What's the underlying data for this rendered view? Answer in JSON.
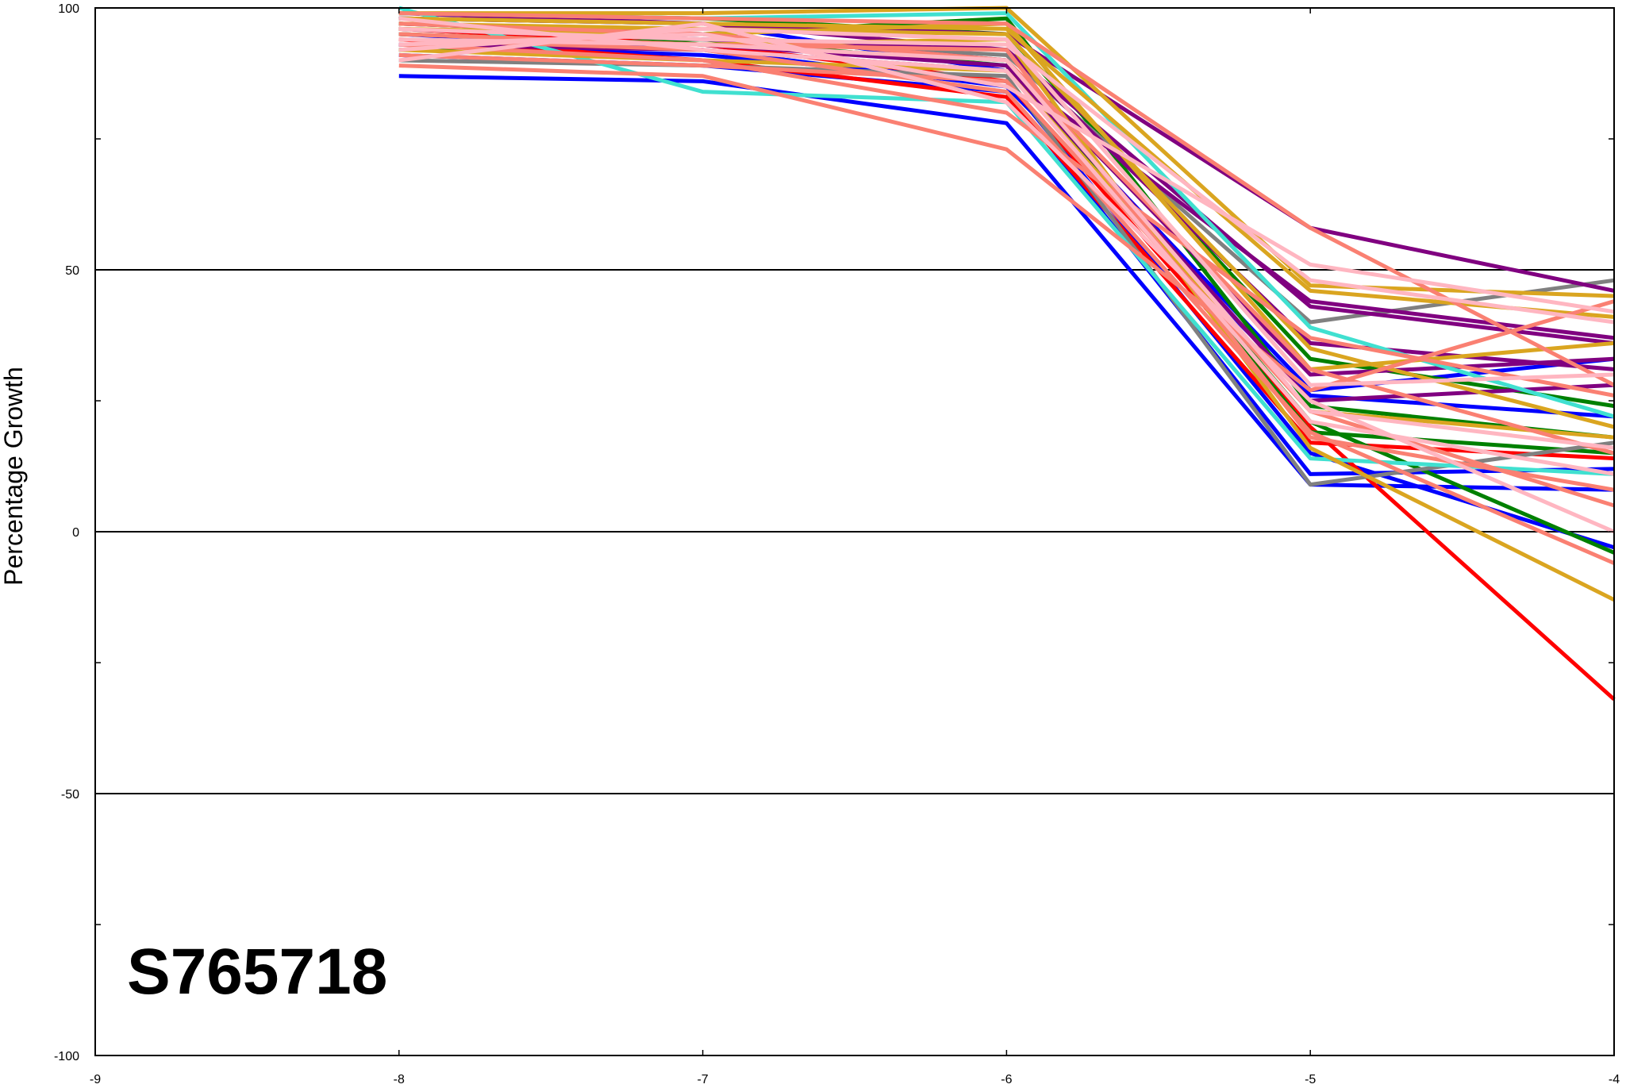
{
  "chart_data": {
    "type": "line",
    "title": "",
    "xlabel": "",
    "ylabel": "Percentage Growth",
    "label": "S765718",
    "xlim": [
      -9,
      -4
    ],
    "ylim": [
      -100,
      100
    ],
    "x_ticks": [
      -9,
      -8,
      -7,
      -6,
      -5,
      -4
    ],
    "y_ticks": [
      100,
      50,
      0,
      -50,
      -100
    ],
    "y_gridlines": [
      50,
      0,
      -50
    ],
    "x": [
      -8,
      -7,
      -6,
      -5,
      -4
    ],
    "series": [
      {
        "color": "#0000ff",
        "values": [
          87,
          86,
          78,
          9,
          8
        ]
      },
      {
        "color": "#0000ff",
        "values": [
          91,
          89,
          84,
          11,
          12
        ]
      },
      {
        "color": "#0000ff",
        "values": [
          95,
          92,
          85,
          26,
          22
        ]
      },
      {
        "color": "#0000ff",
        "values": [
          98,
          97,
          88,
          27,
          33
        ]
      },
      {
        "color": "#0000ff",
        "values": [
          93,
          91,
          86,
          15,
          -3
        ]
      },
      {
        "color": "#ff0000",
        "values": [
          96,
          93,
          86,
          20,
          -32
        ]
      },
      {
        "color": "#ff0000",
        "values": [
          94,
          90,
          83,
          17,
          14
        ]
      },
      {
        "color": "#008000",
        "values": [
          92,
          94,
          89,
          21,
          -4
        ]
      },
      {
        "color": "#008000",
        "values": [
          97,
          95,
          98,
          24,
          18
        ]
      },
      {
        "color": "#008000",
        "values": [
          99,
          98,
          95,
          33,
          24
        ]
      },
      {
        "color": "#008000",
        "values": [
          95,
          93,
          90,
          19,
          15
        ]
      },
      {
        "color": "#808080",
        "values": [
          90,
          89,
          87,
          9,
          17
        ]
      },
      {
        "color": "#808080",
        "values": [
          96,
          94,
          91,
          40,
          48
        ]
      },
      {
        "color": "#800080",
        "values": [
          99,
          97,
          95,
          58,
          46
        ]
      },
      {
        "color": "#800080",
        "values": [
          93,
          92,
          88,
          44,
          37
        ]
      },
      {
        "color": "#800080",
        "values": [
          98,
          97,
          92,
          43,
          36
        ]
      },
      {
        "color": "#800080",
        "values": [
          97,
          95,
          90,
          30,
          33
        ]
      },
      {
        "color": "#800080",
        "values": [
          95,
          93,
          89,
          25,
          28
        ]
      },
      {
        "color": "#800080",
        "values": [
          96,
          94,
          92,
          36,
          31
        ]
      },
      {
        "color": "#40e0d0",
        "values": [
          100,
          84,
          82,
          14,
          11
        ]
      },
      {
        "color": "#40e0d0",
        "values": [
          99,
          98,
          99,
          39,
          22
        ]
      },
      {
        "color": "#daa520",
        "values": [
          99,
          99,
          100,
          47,
          45
        ]
      },
      {
        "color": "#daa520",
        "values": [
          98,
          97,
          96,
          46,
          41
        ]
      },
      {
        "color": "#daa520",
        "values": [
          95,
          93,
          94,
          16,
          -13
        ]
      },
      {
        "color": "#daa520",
        "values": [
          97,
          96,
          95,
          35,
          20
        ]
      },
      {
        "color": "#daa520",
        "values": [
          92,
          90,
          88,
          23,
          18
        ]
      },
      {
        "color": "#daa520",
        "values": [
          96,
          95,
          97,
          31,
          36
        ]
      },
      {
        "color": "#fa8072",
        "values": [
          89,
          87,
          73,
          27,
          44
        ]
      },
      {
        "color": "#fa8072",
        "values": [
          94,
          92,
          84,
          19,
          -6
        ]
      },
      {
        "color": "#fa8072",
        "values": [
          97,
          95,
          90,
          31,
          15
        ]
      },
      {
        "color": "#fa8072",
        "values": [
          93,
          90,
          80,
          37,
          26
        ]
      },
      {
        "color": "#fa8072",
        "values": [
          91,
          89,
          86,
          23,
          5
        ]
      },
      {
        "color": "#fa8072",
        "values": [
          99,
          98,
          97,
          58,
          28
        ]
      },
      {
        "color": "#fa8072",
        "values": [
          95,
          93,
          92,
          18,
          8
        ]
      },
      {
        "color": "#ffb6c1",
        "values": [
          93,
          95,
          85,
          51,
          42
        ]
      },
      {
        "color": "#ffb6c1",
        "values": [
          90,
          97,
          82,
          25,
          0
        ]
      },
      {
        "color": "#ffb6c1",
        "values": [
          96,
          94,
          93,
          48,
          40
        ]
      },
      {
        "color": "#ffb6c1",
        "values": [
          92,
          96,
          94,
          28,
          30
        ]
      },
      {
        "color": "#ffb6c1",
        "values": [
          98,
          92,
          88,
          21,
          11
        ]
      },
      {
        "color": "#ffb6c1",
        "values": [
          94,
          93,
          90,
          23,
          16
        ]
      }
    ]
  }
}
